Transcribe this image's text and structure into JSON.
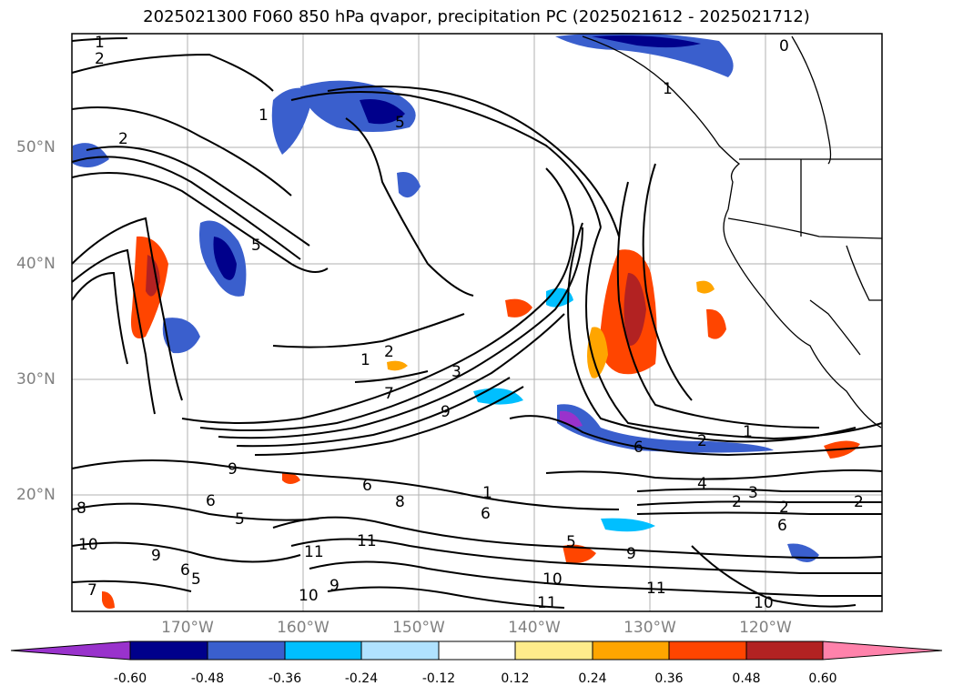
{
  "title": "2025021300 F060 850 hPa qvapor, precipitation PC (2025021612 - 2025021712)",
  "lat_labels": [
    "50°N",
    "40°N",
    "30°N",
    "20°N"
  ],
  "lon_labels": [
    "170°W",
    "160°W",
    "150°W",
    "140°W",
    "130°W",
    "120°W"
  ],
  "colorbar": {
    "ticks": [
      "-0.60",
      "-0.48",
      "-0.36",
      "-0.24",
      "-0.12",
      "0.12",
      "0.24",
      "0.36",
      "0.48",
      "0.60"
    ],
    "colors": [
      "#9932cc",
      "#00008b",
      "#3a5fcd",
      "#00bfff",
      "#b0e2ff",
      "#ffffff",
      "#ffec8b",
      "#ffa500",
      "#ff4500",
      "#b22222",
      "#ff82ab"
    ]
  },
  "contour_labels": {
    "nw": [
      "1",
      "2",
      "2",
      "1",
      "5",
      "5"
    ],
    "center": [
      "1",
      "2",
      "3",
      "9",
      "7",
      "0",
      "1"
    ],
    "east": [
      "1",
      "2",
      "6",
      "4",
      "2",
      "3",
      "2",
      "2",
      "6"
    ],
    "south": [
      "9",
      "6",
      "5",
      "6",
      "8",
      "1",
      "6",
      "11",
      "11",
      "10",
      "9",
      "5",
      "11",
      "11",
      "10"
    ],
    "west": [
      "8",
      "10",
      "9",
      "6",
      "5",
      "7",
      "9",
      "10"
    ]
  }
}
